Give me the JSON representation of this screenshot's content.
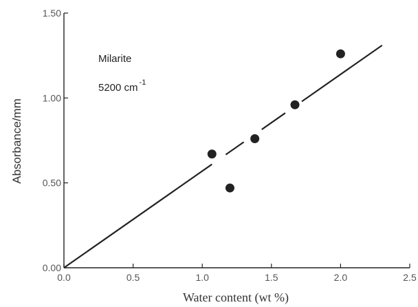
{
  "chart_data": {
    "type": "scatter",
    "xlabel": "Water content (wt %)",
    "ylabel": "Absorbance/mm",
    "xlim": [
      0.0,
      2.5
    ],
    "ylim": [
      0.0,
      1.5
    ],
    "x_ticks": [
      "0.0",
      "0.5",
      "1.0",
      "1.5",
      "2.0",
      "2.5"
    ],
    "y_ticks": [
      "0.00",
      "0.50",
      "1.00",
      "1.50"
    ],
    "annotations": {
      "mineral": "Milarite",
      "wavenumber": "5200  cm",
      "wavenumber_exp": "-1"
    },
    "series": [
      {
        "x": [
          1.07,
          1.2,
          1.38,
          1.67,
          2.0
        ],
        "y": [
          0.67,
          0.47,
          0.76,
          0.96,
          1.26
        ]
      }
    ],
    "fit_line": {
      "x": [
        0.0,
        2.3
      ],
      "y": [
        0.0,
        1.31
      ]
    },
    "fit_line_gaps_x": [
      [
        1.07,
        1.17
      ],
      [
        1.3,
        1.43
      ],
      [
        1.6,
        1.72
      ]
    ],
    "grid": false,
    "legend": "none"
  }
}
